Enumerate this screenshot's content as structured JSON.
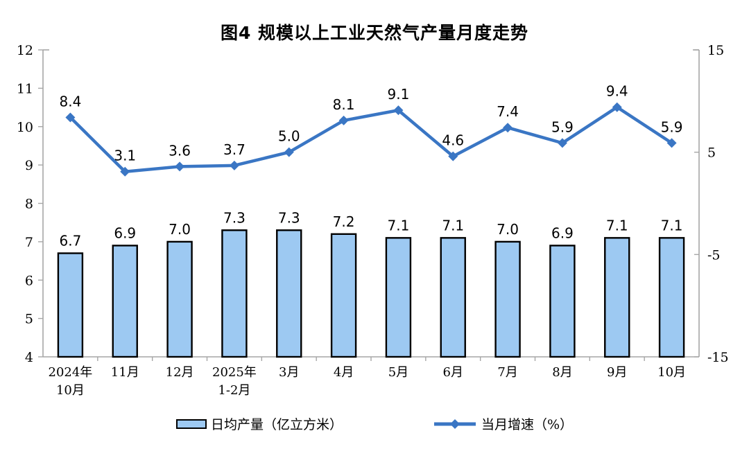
{
  "title": "图4  规模以上工业天然气产量月度走势",
  "chart_data": {
    "type": "combo-bar-line",
    "title": "图4  规模以上工业天然气产量月度走势",
    "categories": [
      "2024年\n10月",
      "11月",
      "12月",
      "2025年\n1-2月",
      "3月",
      "4月",
      "5月",
      "6月",
      "7月",
      "8月",
      "9月",
      "10月"
    ],
    "series": [
      {
        "name": "日均产量（亿立方米）",
        "type": "bar",
        "axis": "left",
        "values": [
          6.7,
          6.9,
          7.0,
          7.3,
          7.3,
          7.2,
          7.1,
          7.1,
          7.0,
          6.9,
          7.1,
          7.1
        ]
      },
      {
        "name": "当月增速（%）",
        "type": "line",
        "axis": "right",
        "values": [
          8.4,
          3.1,
          3.6,
          3.7,
          5.0,
          8.1,
          9.1,
          4.6,
          7.4,
          5.9,
          9.4,
          5.9
        ]
      }
    ],
    "left_axis": {
      "min": 4,
      "max": 12,
      "ticks": [
        4,
        5,
        6,
        7,
        8,
        9,
        10,
        11,
        12
      ]
    },
    "right_axis": {
      "min": -15,
      "max": 15,
      "ticks": [
        -15,
        -5,
        5,
        15
      ]
    },
    "grid": false,
    "legend_position": "bottom",
    "data_labels": true
  },
  "colors": {
    "bar_fill": "#9DC9F2",
    "bar_border": "#000000",
    "line": "#3A76C4",
    "axis": "#A6A6A6",
    "text": "#000000",
    "background": "#FFFFFF"
  }
}
